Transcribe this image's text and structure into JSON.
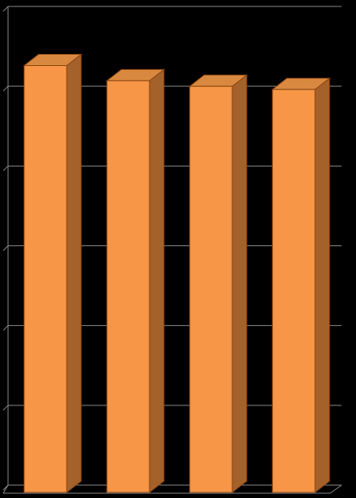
{
  "chart_data": {
    "type": "bar3d",
    "categories": [
      null,
      null,
      null,
      null
    ],
    "values": [
      5.4,
      5.21,
      5.14,
      5.1
    ],
    "color": "#f79646",
    "ylim": [
      0,
      6
    ],
    "yticks": [
      0,
      1,
      2,
      3,
      4,
      5,
      6
    ],
    "grid": true
  }
}
